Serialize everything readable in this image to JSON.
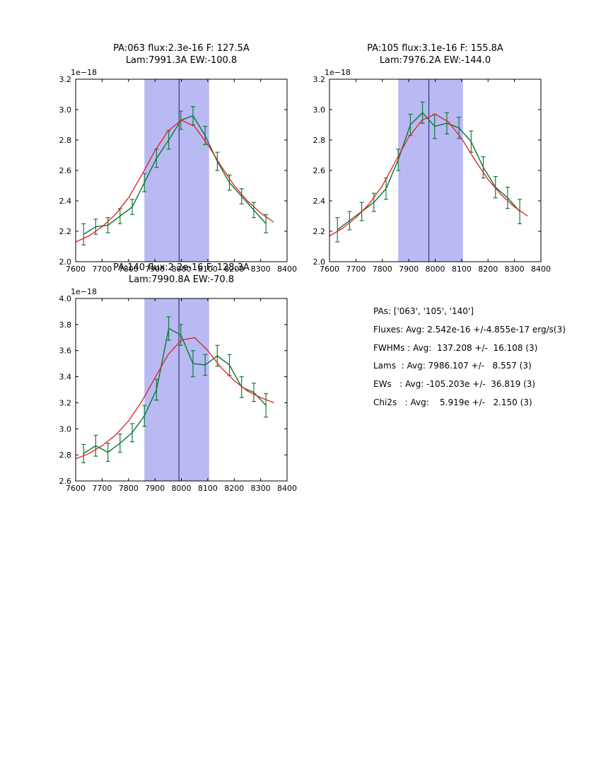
{
  "page": {
    "background": "#ffffff"
  },
  "summary": {
    "lines": [
      "PAs: ['063', '105', '140']",
      "Fluxes: Avg: 2.542e-16 +/-4.855e-17 erg/s(3)",
      "FWHMs : Avg:  137.208 +/-  16.108 (3)",
      "Lams  : Avg: 7986.107 +/-   8.557 (3)",
      "EWs   : Avg: -105.203e +/-  36.819 (3)",
      "Chi2s   : Avg:    5.919e +/-   2.150 (3)"
    ]
  },
  "chart_data": [
    {
      "type": "line",
      "title_line1": "PA:063 flux:2.3e-16 F: 127.5A",
      "title_line2": "Lam:7991.3A EW:-100.8",
      "offset_label": "1e−18",
      "xlabel": "",
      "ylabel": "",
      "xlim": [
        7600,
        8400
      ],
      "ylim": [
        2.0,
        3.2
      ],
      "xticks": [
        7600,
        7700,
        7800,
        7900,
        8000,
        8100,
        8200,
        8300,
        8400
      ],
      "ytick_vals": [
        2.0,
        2.2,
        2.4,
        2.6,
        2.8,
        3.0,
        3.2
      ],
      "ytick_labels": [
        "2.0",
        "2.2",
        "2.4",
        "2.6",
        "2.8",
        "3.0",
        "3.2"
      ],
      "band": [
        7860,
        8105
      ],
      "vline": 7991.3,
      "x": [
        7630,
        7676,
        7722,
        7768,
        7814,
        7860,
        7906,
        7952,
        7998,
        8044,
        8090,
        8136,
        8182,
        8228,
        8274,
        8320
      ],
      "flux": [
        2.18,
        2.23,
        2.24,
        2.3,
        2.36,
        2.52,
        2.68,
        2.8,
        2.93,
        2.96,
        2.83,
        2.66,
        2.52,
        2.43,
        2.34,
        2.25
      ],
      "err": [
        0.07,
        0.05,
        0.05,
        0.05,
        0.05,
        0.06,
        0.06,
        0.06,
        0.06,
        0.06,
        0.06,
        0.06,
        0.05,
        0.05,
        0.05,
        0.06
      ],
      "fit_x": [
        7600,
        7650,
        7700,
        7750,
        7800,
        7850,
        7900,
        7950,
        8000,
        8050,
        8100,
        8150,
        8200,
        8250,
        8300,
        8350
      ],
      "fit_y": [
        2.13,
        2.17,
        2.23,
        2.31,
        2.42,
        2.57,
        2.73,
        2.86,
        2.93,
        2.89,
        2.77,
        2.63,
        2.5,
        2.4,
        2.32,
        2.26
      ],
      "colors": {
        "band": "#b9b9f4",
        "vline": "#1a1a6e",
        "data": "#147a3e",
        "fit": "#e02020"
      }
    },
    {
      "type": "line",
      "title_line1": "PA:105 flux:3.1e-16 F: 155.8A",
      "title_line2": "Lam:7976.2A EW:-144.0",
      "offset_label": "1e−18",
      "xlabel": "",
      "ylabel": "",
      "xlim": [
        7600,
        8400
      ],
      "ylim": [
        2.0,
        3.2
      ],
      "xticks": [
        7600,
        7700,
        7800,
        7900,
        8000,
        8100,
        8200,
        8300,
        8400
      ],
      "ytick_vals": [
        2.0,
        2.2,
        2.4,
        2.6,
        2.8,
        3.0,
        3.2
      ],
      "ytick_labels": [
        "2.0",
        "2.2",
        "2.4",
        "2.6",
        "2.8",
        "3.0",
        "3.2"
      ],
      "band": [
        7860,
        8105
      ],
      "vline": 7976.2,
      "x": [
        7630,
        7676,
        7722,
        7768,
        7814,
        7860,
        7906,
        7952,
        7998,
        8044,
        8090,
        8136,
        8182,
        8228,
        8274,
        8320
      ],
      "flux": [
        2.21,
        2.27,
        2.33,
        2.39,
        2.48,
        2.67,
        2.9,
        2.98,
        2.89,
        2.91,
        2.88,
        2.79,
        2.62,
        2.49,
        2.42,
        2.33
      ],
      "err": [
        0.08,
        0.06,
        0.06,
        0.06,
        0.07,
        0.07,
        0.07,
        0.07,
        0.08,
        0.07,
        0.07,
        0.07,
        0.07,
        0.07,
        0.07,
        0.08
      ],
      "fit_x": [
        7600,
        7650,
        7700,
        7750,
        7800,
        7850,
        7900,
        7950,
        8000,
        8050,
        8100,
        8150,
        8200,
        8250,
        8300,
        8350
      ],
      "fit_y": [
        2.17,
        2.22,
        2.29,
        2.38,
        2.5,
        2.66,
        2.82,
        2.93,
        2.97,
        2.92,
        2.81,
        2.67,
        2.54,
        2.44,
        2.36,
        2.3
      ],
      "colors": {
        "band": "#b9b9f4",
        "vline": "#1a1a6e",
        "data": "#147a3e",
        "fit": "#e02020"
      }
    },
    {
      "type": "line",
      "title_line1": "PA:140 flux:2.2e-16 F: 128.3A",
      "title_line2": "Lam:7990.8A EW:-70.8",
      "offset_label": "1e−18",
      "xlabel": "",
      "ylabel": "",
      "xlim": [
        7600,
        8400
      ],
      "ylim": [
        2.6,
        4.0
      ],
      "xticks": [
        7600,
        7700,
        7800,
        7900,
        8000,
        8100,
        8200,
        8300,
        8400
      ],
      "ytick_vals": [
        2.6,
        2.8,
        3.0,
        3.2,
        3.4,
        3.6,
        3.8,
        4.0
      ],
      "ytick_labels": [
        "2.6",
        "2.8",
        "3.0",
        "3.2",
        "3.4",
        "3.6",
        "3.8",
        "4.0"
      ],
      "band": [
        7860,
        8105
      ],
      "vline": 7990.8,
      "x": [
        7630,
        7676,
        7722,
        7768,
        7814,
        7860,
        7906,
        7952,
        7998,
        8044,
        8090,
        8136,
        8182,
        8228,
        8274,
        8320
      ],
      "flux": [
        2.81,
        2.87,
        2.82,
        2.89,
        2.97,
        3.1,
        3.3,
        3.77,
        3.72,
        3.5,
        3.49,
        3.56,
        3.49,
        3.32,
        3.28,
        3.18
      ],
      "err": [
        0.07,
        0.08,
        0.07,
        0.07,
        0.07,
        0.08,
        0.08,
        0.09,
        0.08,
        0.1,
        0.08,
        0.08,
        0.08,
        0.08,
        0.07,
        0.09
      ],
      "fit_x": [
        7600,
        7650,
        7700,
        7750,
        7800,
        7850,
        7900,
        7950,
        8000,
        8050,
        8100,
        8150,
        8200,
        8250,
        8300,
        8350
      ],
      "fit_y": [
        2.77,
        2.81,
        2.87,
        2.95,
        3.06,
        3.21,
        3.39,
        3.57,
        3.68,
        3.7,
        3.6,
        3.47,
        3.37,
        3.29,
        3.24,
        3.2
      ],
      "colors": {
        "band": "#b9b9f4",
        "vline": "#1a1a6e",
        "data": "#147a3e",
        "fit": "#e02020"
      }
    }
  ]
}
